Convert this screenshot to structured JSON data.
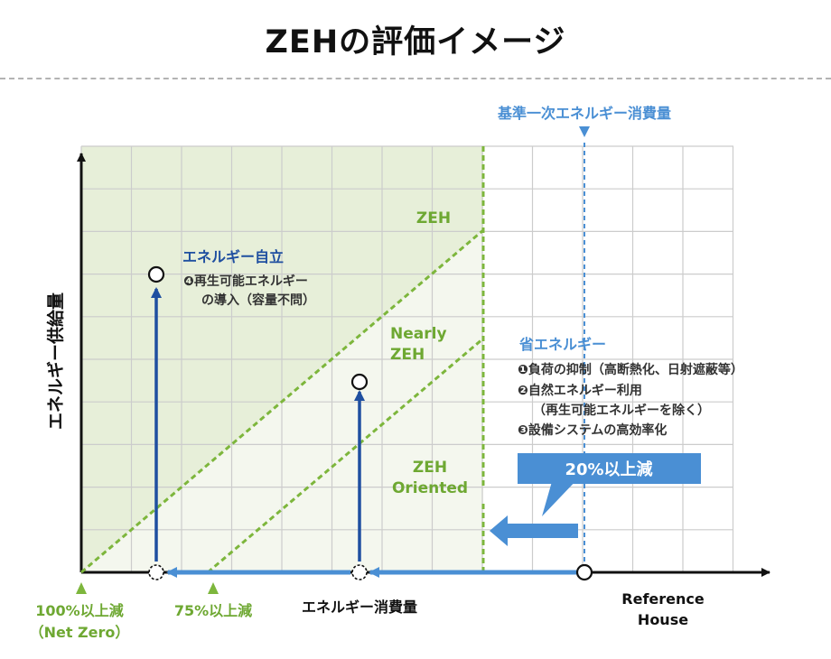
{
  "title": "ZEHの評価イメージ",
  "y_axis_label": "エネルギー供給量",
  "x_axis_label": "エネルギー消費量",
  "reference_house": [
    "Reference",
    "House"
  ],
  "standard_consumption_label": "基準一次エネルギー消費量",
  "zones": {
    "zeh": "ZEH",
    "nearly_zeh": [
      "Nearly",
      "ZEH"
    ],
    "zeh_oriented": [
      "ZEH",
      "Oriented"
    ]
  },
  "x_markers": {
    "net_zero": [
      "100%以上減",
      "（Net Zero）"
    ],
    "reduction_75": "75%以上減"
  },
  "self_sufficiency": {
    "heading": "エネルギー自立",
    "lines": [
      "❹再生可能エネルギー",
      "の導入（容量不問）"
    ]
  },
  "energy_saving": {
    "heading": "省エネルギー",
    "lines": [
      "❶負荷の抑制（高断熱化、日射遮蔽等）",
      "❷自然エネルギー利用",
      "（再生可能エネルギーを除く）",
      "❸設備システムの高効率化"
    ]
  },
  "callout_20": "20%以上減",
  "colors": {
    "green_zone": "#e7efd9",
    "green_zone_light": "#f4f7ee",
    "green_line": "#7db63c",
    "green_text": "#6ea832",
    "blue_dark": "#1f4fa0",
    "blue_light": "#4a8fd4",
    "grid": "#cccccc"
  }
}
